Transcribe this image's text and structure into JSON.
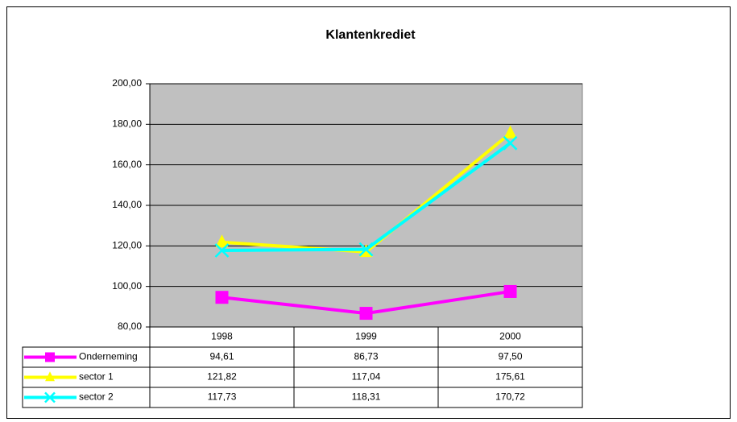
{
  "chart_data": {
    "type": "line",
    "title": "Klantenkrediet",
    "categories": [
      "1998",
      "1999",
      "2000"
    ],
    "series": [
      {
        "name": "Onderneming",
        "color": "#ff00ff",
        "marker": "square",
        "values": [
          94.61,
          86.73,
          97.5
        ],
        "value_labels": [
          "94,61",
          "86,73",
          "97,50"
        ]
      },
      {
        "name": "sector 1",
        "color": "#ffff00",
        "marker": "triangle",
        "values": [
          121.82,
          117.04,
          175.61
        ],
        "value_labels": [
          "121,82",
          "117,04",
          "175,61"
        ]
      },
      {
        "name": "sector 2",
        "color": "#00ffff",
        "marker": "x",
        "values": [
          117.73,
          118.31,
          170.72
        ],
        "value_labels": [
          "117,73",
          "118,31",
          "170,72"
        ]
      }
    ],
    "ylim": [
      80,
      200
    ],
    "yticks": [
      {
        "value": 80,
        "label": "80,00"
      },
      {
        "value": 100,
        "label": "100,00"
      },
      {
        "value": 120,
        "label": "120,00"
      },
      {
        "value": 140,
        "label": "140,00"
      },
      {
        "value": 160,
        "label": "160,00"
      },
      {
        "value": 180,
        "label": "180,00"
      },
      {
        "value": 200,
        "label": "200,00"
      }
    ],
    "grid": true,
    "plot_background": "#c0c0c0",
    "data_table": true
  }
}
